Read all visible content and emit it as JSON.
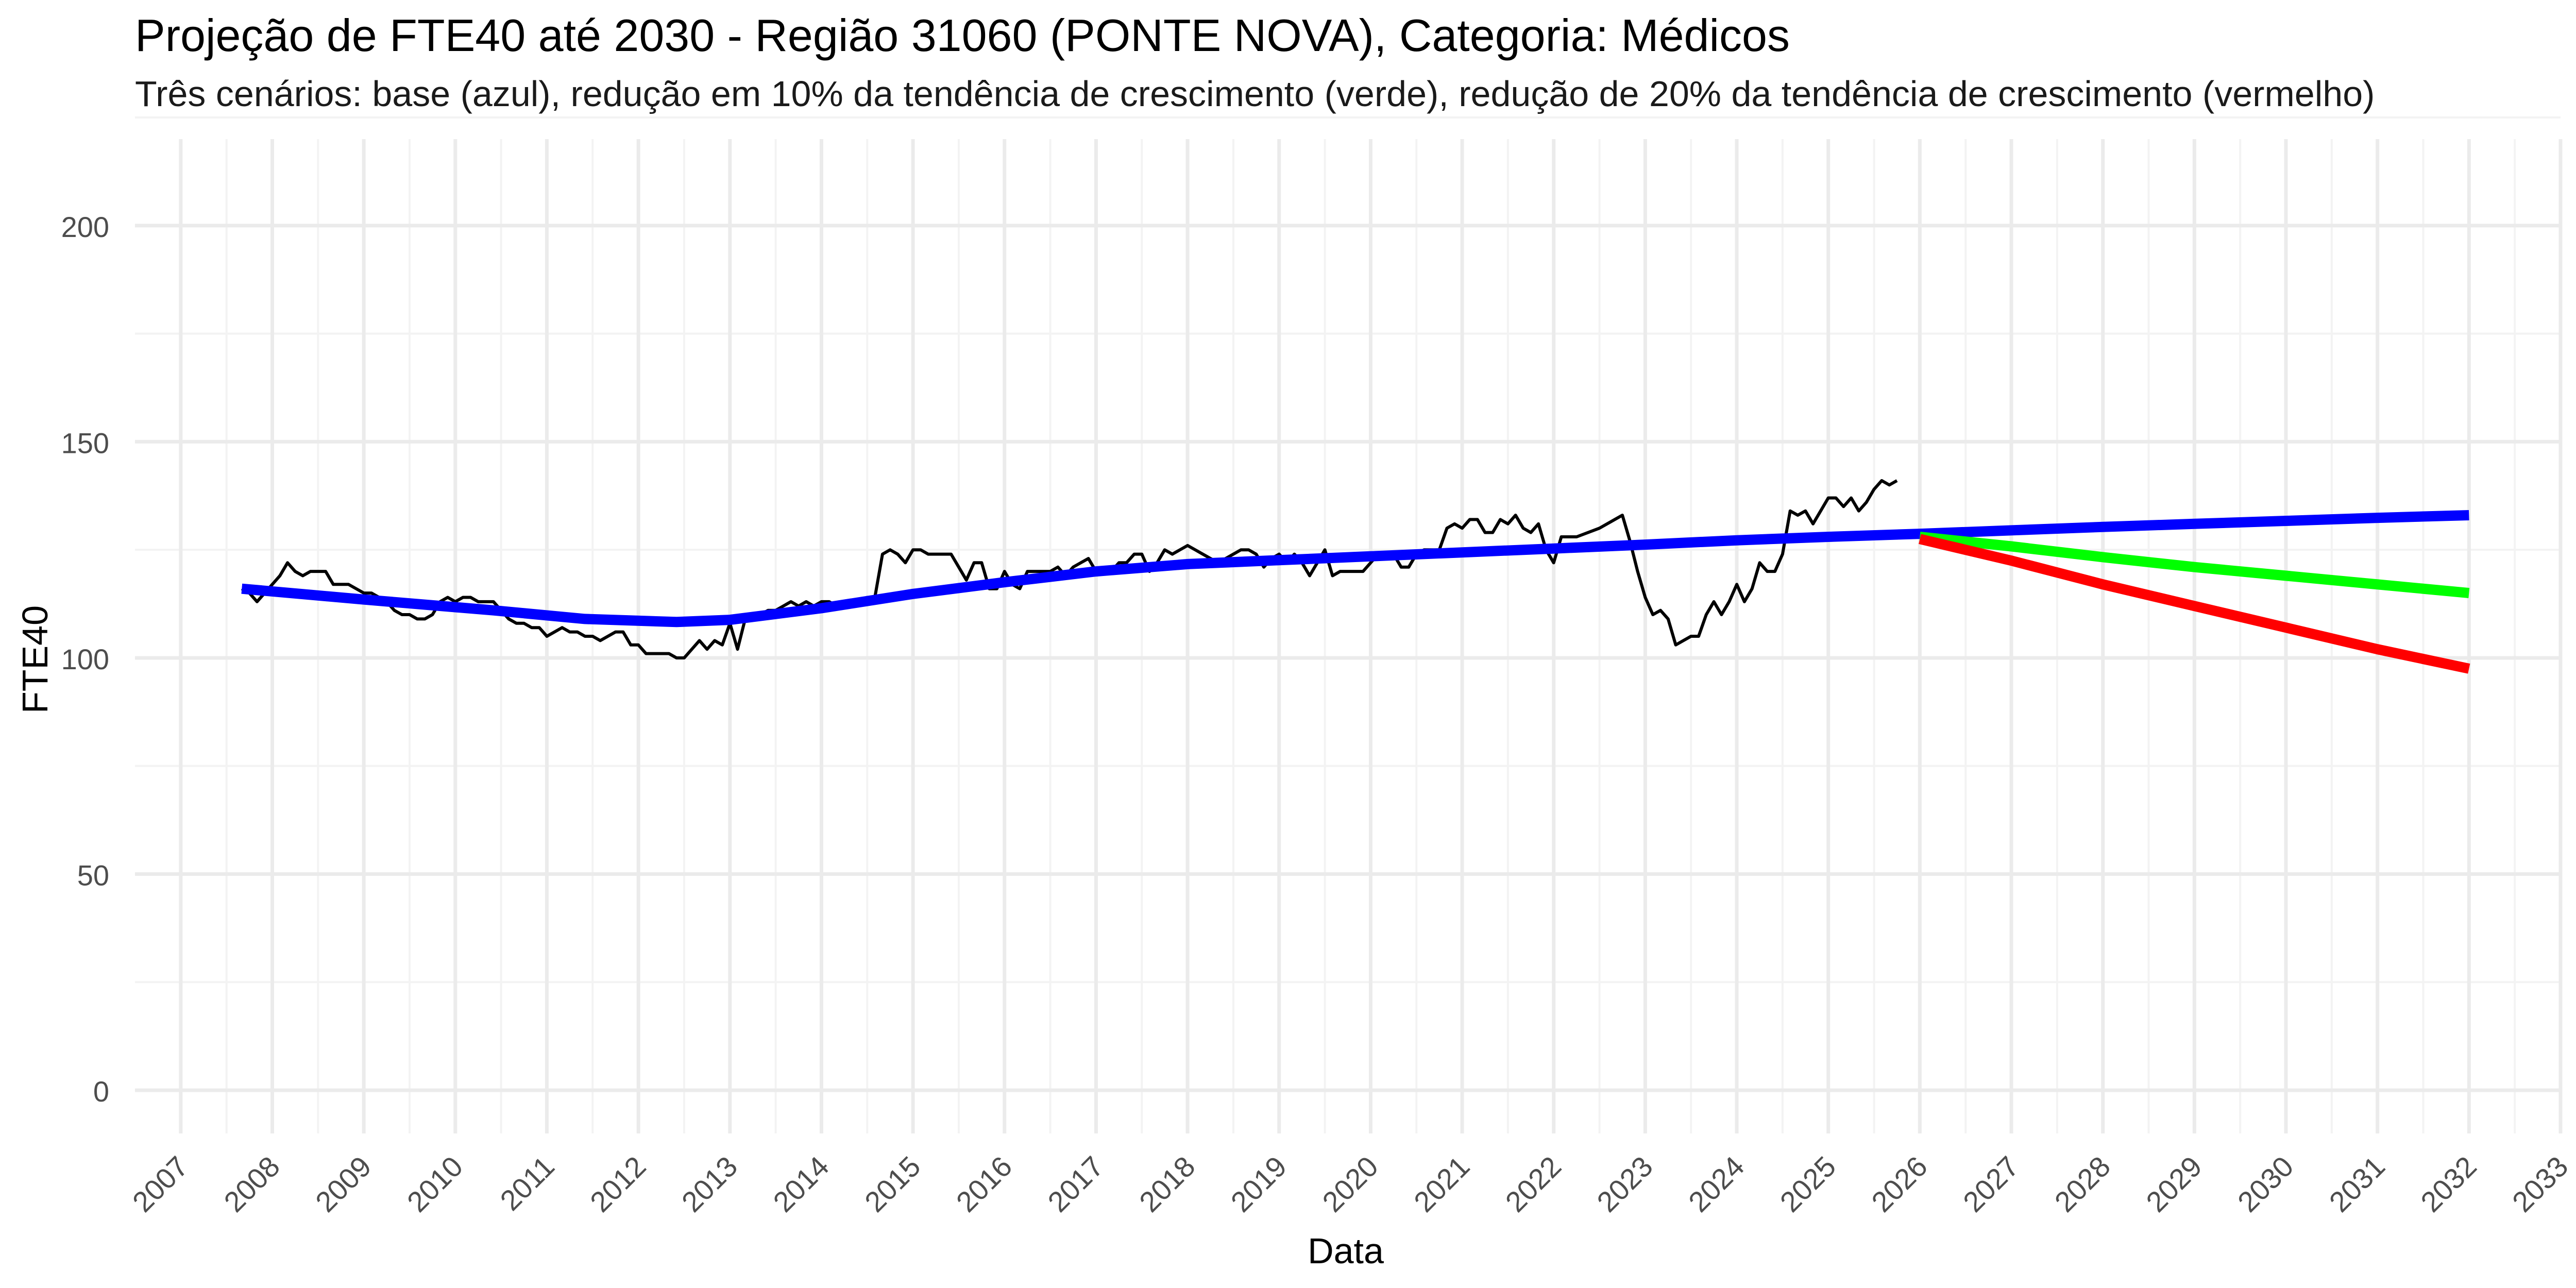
{
  "chart_data": {
    "type": "line",
    "title": "Projeção de FTE40 até 2030 - Região 31060 (PONTE NOVA), Categoria: Médicos",
    "subtitle": "Três cenários: base (azul), redução em 10% da tendência de crescimento (verde), redução de 20% da tendência de crescimento (vermelho)",
    "xlabel": "Data",
    "ylabel": "FTE40",
    "x_ticks": [
      "2007",
      "2008",
      "2009",
      "2010",
      "2011",
      "2012",
      "2013",
      "2014",
      "2015",
      "2016",
      "2017",
      "2018",
      "2019",
      "2020",
      "2021",
      "2022",
      "2023",
      "2024",
      "2025",
      "2026",
      "2027",
      "2028",
      "2029",
      "2030",
      "2031",
      "2032",
      "2033"
    ],
    "y_ticks": [
      "0",
      "50",
      "100",
      "150",
      "200"
    ],
    "xlim": [
      "2006-07-01",
      "2033-01-01"
    ],
    "ylim": [
      -10,
      220
    ],
    "grid": true,
    "legend": "none",
    "series": [
      {
        "color": "#000000",
        "points": [
          [
            "2007-09-01",
            116
          ],
          [
            "2007-10-01",
            115
          ],
          [
            "2007-11-01",
            113
          ],
          [
            "2007-12-01",
            115
          ],
          [
            "2008-01-01",
            117
          ],
          [
            "2008-02-01",
            119
          ],
          [
            "2008-03-01",
            122
          ],
          [
            "2008-04-01",
            120
          ],
          [
            "2008-05-01",
            119
          ],
          [
            "2008-06-01",
            120
          ],
          [
            "2008-07-01",
            120
          ],
          [
            "2008-08-01",
            120
          ],
          [
            "2008-09-01",
            117
          ],
          [
            "2008-10-01",
            117
          ],
          [
            "2008-11-01",
            117
          ],
          [
            "2008-12-01",
            116
          ],
          [
            "2009-01-01",
            115
          ],
          [
            "2009-02-01",
            115
          ],
          [
            "2009-03-01",
            114
          ],
          [
            "2009-04-01",
            113
          ],
          [
            "2009-05-01",
            111
          ],
          [
            "2009-06-01",
            110
          ],
          [
            "2009-07-01",
            110
          ],
          [
            "2009-08-01",
            109
          ],
          [
            "2009-09-01",
            109
          ],
          [
            "2009-10-01",
            110
          ],
          [
            "2009-11-01",
            113
          ],
          [
            "2009-12-01",
            114
          ],
          [
            "2010-01-01",
            113
          ],
          [
            "2010-02-01",
            114
          ],
          [
            "2010-03-01",
            114
          ],
          [
            "2010-04-01",
            113
          ],
          [
            "2010-05-01",
            113
          ],
          [
            "2010-06-01",
            113
          ],
          [
            "2010-07-01",
            111
          ],
          [
            "2010-08-01",
            109
          ],
          [
            "2010-09-01",
            108
          ],
          [
            "2010-10-01",
            108
          ],
          [
            "2010-11-01",
            107
          ],
          [
            "2010-12-01",
            107
          ],
          [
            "2011-01-01",
            105
          ],
          [
            "2011-02-01",
            106
          ],
          [
            "2011-03-01",
            107
          ],
          [
            "2011-04-01",
            106
          ],
          [
            "2011-05-01",
            106
          ],
          [
            "2011-06-01",
            105
          ],
          [
            "2011-07-01",
            105
          ],
          [
            "2011-08-01",
            104
          ],
          [
            "2011-09-01",
            105
          ],
          [
            "2011-10-01",
            106
          ],
          [
            "2011-11-01",
            106
          ],
          [
            "2011-12-01",
            103
          ],
          [
            "2012-01-01",
            103
          ],
          [
            "2012-02-01",
            101
          ],
          [
            "2012-03-01",
            101
          ],
          [
            "2012-04-01",
            101
          ],
          [
            "2012-05-01",
            101
          ],
          [
            "2012-06-01",
            100
          ],
          [
            "2012-07-01",
            100
          ],
          [
            "2012-08-01",
            102
          ],
          [
            "2012-09-01",
            104
          ],
          [
            "2012-10-01",
            102
          ],
          [
            "2012-11-01",
            104
          ],
          [
            "2012-12-01",
            103
          ],
          [
            "2013-01-01",
            108
          ],
          [
            "2013-02-01",
            102
          ],
          [
            "2013-03-01",
            109
          ],
          [
            "2013-04-01",
            110
          ],
          [
            "2013-05-01",
            110
          ],
          [
            "2013-06-01",
            111
          ],
          [
            "2013-07-01",
            111
          ],
          [
            "2013-08-01",
            112
          ],
          [
            "2013-09-01",
            113
          ],
          [
            "2013-10-01",
            112
          ],
          [
            "2013-11-01",
            113
          ],
          [
            "2013-12-01",
            112
          ],
          [
            "2014-01-01",
            113
          ],
          [
            "2014-02-01",
            113
          ],
          [
            "2014-03-01",
            112
          ],
          [
            "2014-04-01",
            113
          ],
          [
            "2014-05-01",
            113
          ],
          [
            "2014-06-01",
            113
          ],
          [
            "2014-07-01",
            114
          ],
          [
            "2014-08-01",
            114
          ],
          [
            "2014-09-01",
            124
          ],
          [
            "2014-10-01",
            125
          ],
          [
            "2014-11-01",
            124
          ],
          [
            "2014-12-01",
            122
          ],
          [
            "2015-01-01",
            125
          ],
          [
            "2015-02-01",
            125
          ],
          [
            "2015-03-01",
            124
          ],
          [
            "2015-04-01",
            124
          ],
          [
            "2015-05-01",
            124
          ],
          [
            "2015-06-01",
            124
          ],
          [
            "2015-07-01",
            121
          ],
          [
            "2015-08-01",
            118
          ],
          [
            "2015-09-01",
            122
          ],
          [
            "2015-10-01",
            122
          ],
          [
            "2015-11-01",
            116
          ],
          [
            "2015-12-01",
            116
          ],
          [
            "2016-01-01",
            120
          ],
          [
            "2016-02-01",
            117
          ],
          [
            "2016-03-01",
            116
          ],
          [
            "2016-04-01",
            120
          ],
          [
            "2016-05-01",
            120
          ],
          [
            "2016-06-01",
            120
          ],
          [
            "2016-07-01",
            120
          ],
          [
            "2016-08-01",
            121
          ],
          [
            "2016-09-01",
            119
          ],
          [
            "2016-10-01",
            121
          ],
          [
            "2016-11-01",
            122
          ],
          [
            "2016-12-01",
            123
          ],
          [
            "2017-01-01",
            120
          ],
          [
            "2017-02-01",
            120
          ],
          [
            "2017-03-01",
            120
          ],
          [
            "2017-04-01",
            122
          ],
          [
            "2017-05-01",
            122
          ],
          [
            "2017-06-01",
            124
          ],
          [
            "2017-07-01",
            124
          ],
          [
            "2017-08-01",
            120
          ],
          [
            "2017-09-01",
            122
          ],
          [
            "2017-10-01",
            125
          ],
          [
            "2017-11-01",
            124
          ],
          [
            "2017-12-01",
            125
          ],
          [
            "2018-01-01",
            126
          ],
          [
            "2018-02-01",
            125
          ],
          [
            "2018-03-01",
            124
          ],
          [
            "2018-04-01",
            123
          ],
          [
            "2018-05-01",
            122
          ],
          [
            "2018-06-01",
            123
          ],
          [
            "2018-07-01",
            124
          ],
          [
            "2018-08-01",
            125
          ],
          [
            "2018-09-01",
            125
          ],
          [
            "2018-10-01",
            124
          ],
          [
            "2018-11-01",
            121
          ],
          [
            "2018-12-01",
            123
          ],
          [
            "2019-01-01",
            124
          ],
          [
            "2019-02-01",
            122
          ],
          [
            "2019-03-01",
            124
          ],
          [
            "2019-04-01",
            122
          ],
          [
            "2019-05-01",
            119
          ],
          [
            "2019-06-01",
            122
          ],
          [
            "2019-07-01",
            125
          ],
          [
            "2019-08-01",
            119
          ],
          [
            "2019-09-01",
            120
          ],
          [
            "2019-10-01",
            120
          ],
          [
            "2019-11-01",
            120
          ],
          [
            "2019-12-01",
            120
          ],
          [
            "2020-01-01",
            122
          ],
          [
            "2020-02-01",
            124
          ],
          [
            "2020-03-01",
            123
          ],
          [
            "2020-04-01",
            124
          ],
          [
            "2020-05-01",
            121
          ],
          [
            "2020-06-01",
            121
          ],
          [
            "2020-07-01",
            124
          ],
          [
            "2020-08-01",
            125
          ],
          [
            "2020-09-01",
            125
          ],
          [
            "2020-10-01",
            125
          ],
          [
            "2020-11-01",
            130
          ],
          [
            "2020-12-01",
            131
          ],
          [
            "2021-01-01",
            130
          ],
          [
            "2021-02-01",
            132
          ],
          [
            "2021-03-01",
            132
          ],
          [
            "2021-04-01",
            129
          ],
          [
            "2021-05-01",
            129
          ],
          [
            "2021-06-01",
            132
          ],
          [
            "2021-07-01",
            131
          ],
          [
            "2021-08-01",
            133
          ],
          [
            "2021-09-01",
            130
          ],
          [
            "2021-10-01",
            129
          ],
          [
            "2021-11-01",
            131
          ],
          [
            "2021-12-01",
            125
          ],
          [
            "2022-01-01",
            122
          ],
          [
            "2022-02-01",
            128
          ],
          [
            "2022-03-01",
            128
          ],
          [
            "2022-04-01",
            128
          ],
          [
            "2022-07-01",
            130
          ],
          [
            "2022-09-01",
            132
          ],
          [
            "2022-10-01",
            133
          ],
          [
            "2022-11-01",
            127
          ],
          [
            "2022-12-01",
            120
          ],
          [
            "2023-01-01",
            114
          ],
          [
            "2023-02-01",
            110
          ],
          [
            "2023-03-01",
            111
          ],
          [
            "2023-04-01",
            109
          ],
          [
            "2023-05-01",
            103
          ],
          [
            "2023-06-01",
            104
          ],
          [
            "2023-07-01",
            105
          ],
          [
            "2023-08-01",
            105
          ],
          [
            "2023-09-01",
            110
          ],
          [
            "2023-10-01",
            113
          ],
          [
            "2023-11-01",
            110
          ],
          [
            "2023-12-01",
            113
          ],
          [
            "2024-01-01",
            117
          ],
          [
            "2024-02-01",
            113
          ],
          [
            "2024-03-01",
            116
          ],
          [
            "2024-04-01",
            122
          ],
          [
            "2024-05-01",
            120
          ],
          [
            "2024-06-01",
            120
          ],
          [
            "2024-07-01",
            124
          ],
          [
            "2024-08-01",
            134
          ],
          [
            "2024-09-01",
            133
          ],
          [
            "2024-10-01",
            134
          ],
          [
            "2024-11-01",
            131
          ],
          [
            "2024-12-01",
            134
          ],
          [
            "2025-01-01",
            137
          ],
          [
            "2025-02-01",
            137
          ],
          [
            "2025-03-01",
            135
          ],
          [
            "2025-04-01",
            137
          ],
          [
            "2025-05-01",
            134
          ],
          [
            "2025-06-01",
            136
          ],
          [
            "2025-07-01",
            139
          ],
          [
            "2025-08-01",
            141
          ],
          [
            "2025-09-01",
            140
          ],
          [
            "2025-10-01",
            141
          ]
        ]
      },
      {
        "color": "#0000FF",
        "points": [
          [
            "2007-09-01",
            116
          ],
          [
            "2009-01-01",
            113.5
          ],
          [
            "2010-06-01",
            111
          ],
          [
            "2011-06-01",
            109
          ],
          [
            "2012-06-01",
            108.3
          ],
          [
            "2013-01-01",
            108.8
          ],
          [
            "2014-01-01",
            111.5
          ],
          [
            "2015-01-01",
            114.8
          ],
          [
            "2016-01-01",
            117.5
          ],
          [
            "2017-01-01",
            120
          ],
          [
            "2018-01-01",
            121.7
          ],
          [
            "2019-01-01",
            122.6
          ],
          [
            "2020-01-01",
            123.5
          ],
          [
            "2021-01-01",
            124.4
          ],
          [
            "2022-01-01",
            125.3
          ],
          [
            "2023-01-01",
            126.2
          ],
          [
            "2024-01-01",
            127.2
          ],
          [
            "2025-01-01",
            128
          ],
          [
            "2026-01-01",
            128.7
          ],
          [
            "2027-01-01",
            129.5
          ],
          [
            "2028-01-01",
            130.3
          ],
          [
            "2029-01-01",
            131
          ],
          [
            "2030-01-01",
            131.7
          ],
          [
            "2031-01-01",
            132.4
          ],
          [
            "2032-01-01",
            133
          ]
        ]
      },
      {
        "color": "#00FF00",
        "points": [
          [
            "2026-01-01",
            128
          ],
          [
            "2027-01-01",
            125.8
          ],
          [
            "2028-01-01",
            123.3
          ],
          [
            "2029-01-01",
            121
          ],
          [
            "2030-01-01",
            119
          ],
          [
            "2031-01-01",
            117
          ],
          [
            "2032-01-01",
            115
          ]
        ]
      },
      {
        "color": "#FF0000",
        "points": [
          [
            "2026-01-01",
            127.5
          ],
          [
            "2027-01-01",
            122.5
          ],
          [
            "2028-01-01",
            117
          ],
          [
            "2029-01-01",
            112
          ],
          [
            "2030-01-01",
            107
          ],
          [
            "2031-01-01",
            102
          ],
          [
            "2032-01-01",
            97.5
          ]
        ]
      }
    ]
  }
}
